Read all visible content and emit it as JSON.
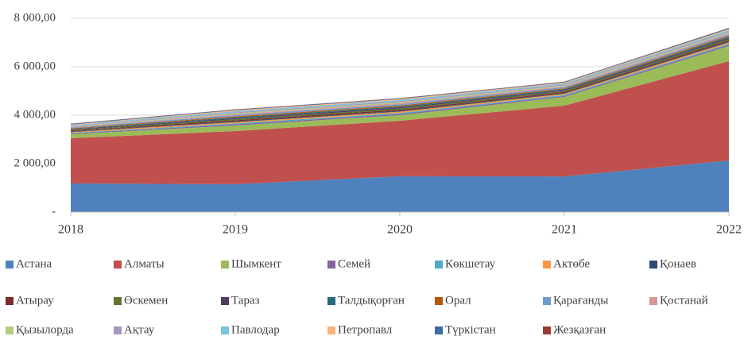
{
  "chart_data": {
    "type": "stacked_area",
    "categories": [
      "2018",
      "2019",
      "2020",
      "2021",
      "2022"
    ],
    "ylim": [
      0,
      8000
    ],
    "yticks": [
      {
        "value": 0,
        "label": "-"
      },
      {
        "value": 2000,
        "label": "2 000,00"
      },
      {
        "value": 4000,
        "label": "4 000,00"
      },
      {
        "value": 6000,
        "label": "6 000,00"
      },
      {
        "value": 8000,
        "label": "8 000,00"
      }
    ],
    "grid": true,
    "legend": "bottom",
    "series": [
      {
        "name": "Астана",
        "color": "#4f81bd",
        "values": [
          1180,
          1150,
          1480,
          1470,
          2130
        ]
      },
      {
        "name": "Алматы",
        "color": "#c0504d",
        "values": [
          1870,
          2195,
          2290,
          2925,
          4100
        ]
      },
      {
        "name": "Шымкент",
        "color": "#9bbb59",
        "values": [
          165,
          230,
          230,
          360,
          625
        ]
      },
      {
        "name": "Семей",
        "color": "#8064a2",
        "values": [
          30,
          45,
          48,
          42,
          50
        ]
      },
      {
        "name": "Көкшетау",
        "color": "#4bacc6",
        "values": [
          25,
          40,
          42,
          38,
          45
        ]
      },
      {
        "name": "Актөбе",
        "color": "#f79646",
        "values": [
          35,
          55,
          58,
          50,
          60
        ]
      },
      {
        "name": "Қонаев",
        "color": "#2c4d75",
        "values": [
          20,
          30,
          32,
          30,
          35
        ]
      },
      {
        "name": "Атырау",
        "color": "#772c2a",
        "values": [
          30,
          45,
          48,
          42,
          50
        ]
      },
      {
        "name": "Өскемен",
        "color": "#5f7530",
        "values": [
          30,
          45,
          48,
          42,
          50
        ]
      },
      {
        "name": "Тараз",
        "color": "#4d3b62",
        "values": [
          25,
          40,
          42,
          38,
          45
        ]
      },
      {
        "name": "Талдықорған",
        "color": "#276a7c",
        "values": [
          20,
          35,
          38,
          33,
          40
        ]
      },
      {
        "name": "Орал",
        "color": "#b65708",
        "values": [
          25,
          40,
          42,
          38,
          45
        ]
      },
      {
        "name": "Қарағанды",
        "color": "#729aca",
        "values": [
          35,
          55,
          58,
          52,
          60
        ]
      },
      {
        "name": "Қостанай",
        "color": "#d99694",
        "values": [
          25,
          40,
          42,
          38,
          45
        ]
      },
      {
        "name": "Қызылорда",
        "color": "#b3cc82",
        "values": [
          20,
          35,
          38,
          33,
          40
        ]
      },
      {
        "name": "Ақтау",
        "color": "#a796c1",
        "values": [
          25,
          40,
          42,
          38,
          45
        ]
      },
      {
        "name": "Павлодар",
        "color": "#76c5da",
        "values": [
          30,
          45,
          48,
          42,
          50
        ]
      },
      {
        "name": "Петропавл",
        "color": "#fab07b",
        "values": [
          25,
          40,
          42,
          38,
          45
        ]
      },
      {
        "name": "Түркістан",
        "color": "#3a6ba5",
        "values": [
          25,
          25,
          25,
          25,
          35
        ]
      },
      {
        "name": "Жезқазған",
        "color": "#9c3b38",
        "values": [
          10,
          10,
          10,
          10,
          10
        ]
      }
    ]
  }
}
